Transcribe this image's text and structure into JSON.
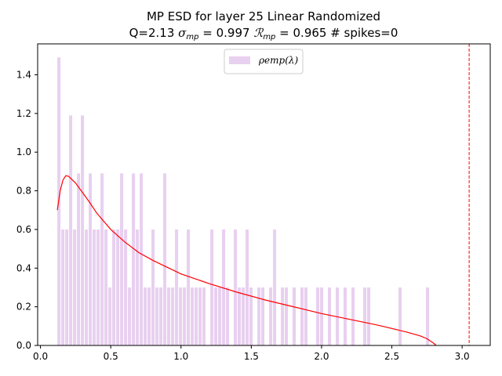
{
  "chart_data": {
    "type": "bar",
    "title_line1": "MP ESD for layer 25 Linear Randomized",
    "title_line2": "Q=2.13 σ_mp = 0.997 ℛ_mp = 0.965 # spikes=0",
    "xlabel": "",
    "ylabel": "",
    "xlim": [
      -0.02,
      3.2
    ],
    "ylim": [
      0,
      1.56
    ],
    "x_ticks": [
      0.0,
      0.5,
      1.0,
      1.5,
      2.0,
      2.5,
      3.0
    ],
    "x_tick_labels": [
      "0.0",
      "0.5",
      "1.0",
      "1.5",
      "2.0",
      "2.5",
      "3.0"
    ],
    "y_ticks": [
      0.0,
      0.2,
      0.4,
      0.6,
      0.8,
      1.0,
      1.2,
      1.4
    ],
    "y_tick_labels": [
      "0.0",
      "0.2",
      "0.4",
      "0.6",
      "0.8",
      "1.0",
      "1.2",
      "1.4"
    ],
    "legend": {
      "label": "ρemp(λ)",
      "position": "top-center"
    },
    "histogram": {
      "bin_start": 0.12,
      "bin_width": 0.0279,
      "color": "#e8d0f0",
      "values": [
        1.49,
        0.6,
        0.6,
        1.19,
        0.6,
        0.89,
        1.19,
        0.6,
        0.89,
        0.6,
        0.6,
        0.89,
        0.6,
        0.3,
        0.6,
        0.6,
        0.89,
        0.6,
        0.3,
        0.89,
        0.6,
        0.89,
        0.3,
        0.3,
        0.6,
        0.3,
        0.3,
        0.89,
        0.3,
        0.3,
        0.6,
        0.3,
        0.3,
        0.6,
        0.3,
        0.3,
        0.3,
        0.3,
        0.0,
        0.6,
        0.3,
        0.3,
        0.6,
        0.3,
        0.0,
        0.6,
        0.3,
        0.3,
        0.6,
        0.3,
        0.0,
        0.3,
        0.3,
        0.0,
        0.3,
        0.6,
        0.0,
        0.3,
        0.3,
        0.0,
        0.3,
        0.0,
        0.3,
        0.3,
        0.0,
        0.0,
        0.3,
        0.3,
        0.0,
        0.3,
        0.0,
        0.3,
        0.0,
        0.3,
        0.0,
        0.3,
        0.0,
        0.0,
        0.3,
        0.3,
        0.0,
        0.0,
        0.0,
        0.0,
        0.0,
        0.0,
        0.0,
        0.3,
        0.0,
        0.0,
        0.0,
        0.0,
        0.0,
        0.0,
        0.3
      ]
    },
    "mp_curve": {
      "color": "#ff0000",
      "lambda_min": 0.12,
      "lambda_max": 2.815,
      "x": [
        0.12,
        0.14,
        0.16,
        0.18,
        0.2,
        0.25,
        0.3,
        0.35,
        0.4,
        0.5,
        0.6,
        0.7,
        0.8,
        0.9,
        1.0,
        1.2,
        1.4,
        1.6,
        1.8,
        2.0,
        2.2,
        2.4,
        2.6,
        2.7,
        2.75,
        2.8,
        2.815
      ],
      "y": [
        0.7,
        0.8,
        0.855,
        0.878,
        0.875,
        0.84,
        0.79,
        0.74,
        0.685,
        0.6,
        0.535,
        0.48,
        0.44,
        0.405,
        0.37,
        0.32,
        0.275,
        0.235,
        0.2,
        0.165,
        0.135,
        0.105,
        0.07,
        0.05,
        0.035,
        0.01,
        0.0
      ]
    },
    "spike_threshold": {
      "x": 3.05,
      "color": "#ff0000",
      "style": "dashed"
    }
  }
}
